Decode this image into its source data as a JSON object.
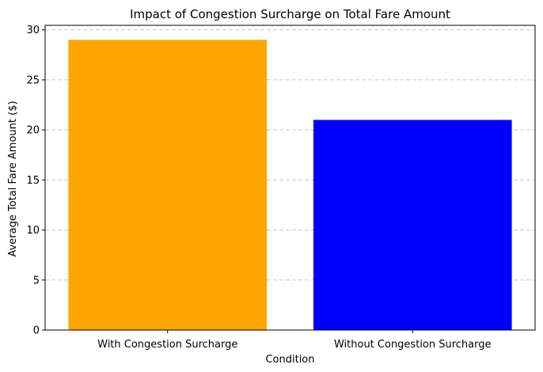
{
  "chart_data": {
    "type": "bar",
    "title": "Impact of Congestion Surcharge on Total Fare Amount",
    "xlabel": "Condition",
    "ylabel": "Average Total Fare Amount ($)",
    "categories": [
      "With Congestion Surcharge",
      "Without Congestion Surcharge"
    ],
    "values": [
      29.0,
      21.0
    ],
    "colors": [
      "#ffa500",
      "#0000ff"
    ],
    "ylim": [
      0,
      30.45
    ],
    "yticks": [
      0,
      5,
      10,
      15,
      20,
      25,
      30
    ],
    "grid": {
      "axis": "y",
      "style": "dashed",
      "color": "#c8c8c8"
    }
  }
}
